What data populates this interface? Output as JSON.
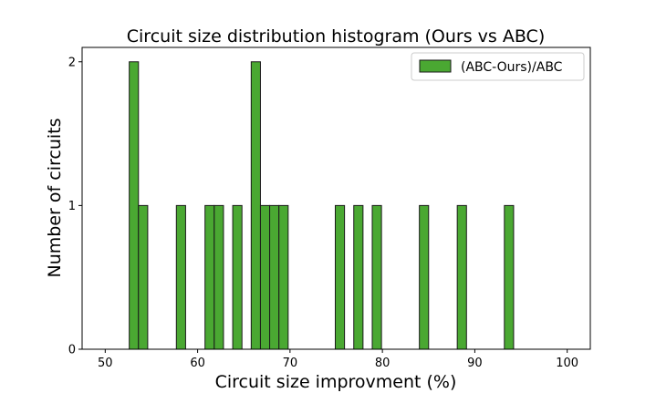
{
  "chart_data": {
    "type": "bar",
    "title": "Circuit size distribution histogram (Ours vs ABC)",
    "xlabel": "Circuit size improvment (%)",
    "ylabel": "Number of circuits",
    "xlim": [
      47.5,
      102.5
    ],
    "ylim": [
      0,
      2.1
    ],
    "xticks": [
      50,
      60,
      70,
      80,
      90,
      100
    ],
    "yticks": [
      0,
      1,
      2
    ],
    "bin_width": 1.0,
    "grid": false,
    "legend_position": "top-right",
    "colors": {
      "bar": "#4aa832",
      "edge": "#1a1a1a"
    },
    "series": [
      {
        "name": "(ABC-Ours)/ABC",
        "x": [
          52.6,
          53.6,
          57.7,
          60.8,
          61.8,
          63.8,
          65.8,
          66.8,
          67.8,
          68.8,
          74.9,
          76.9,
          78.9,
          84.0,
          88.1,
          93.2
        ],
        "values": [
          2,
          1,
          1,
          1,
          1,
          1,
          2,
          1,
          1,
          1,
          1,
          1,
          1,
          1,
          1,
          1
        ]
      }
    ]
  }
}
